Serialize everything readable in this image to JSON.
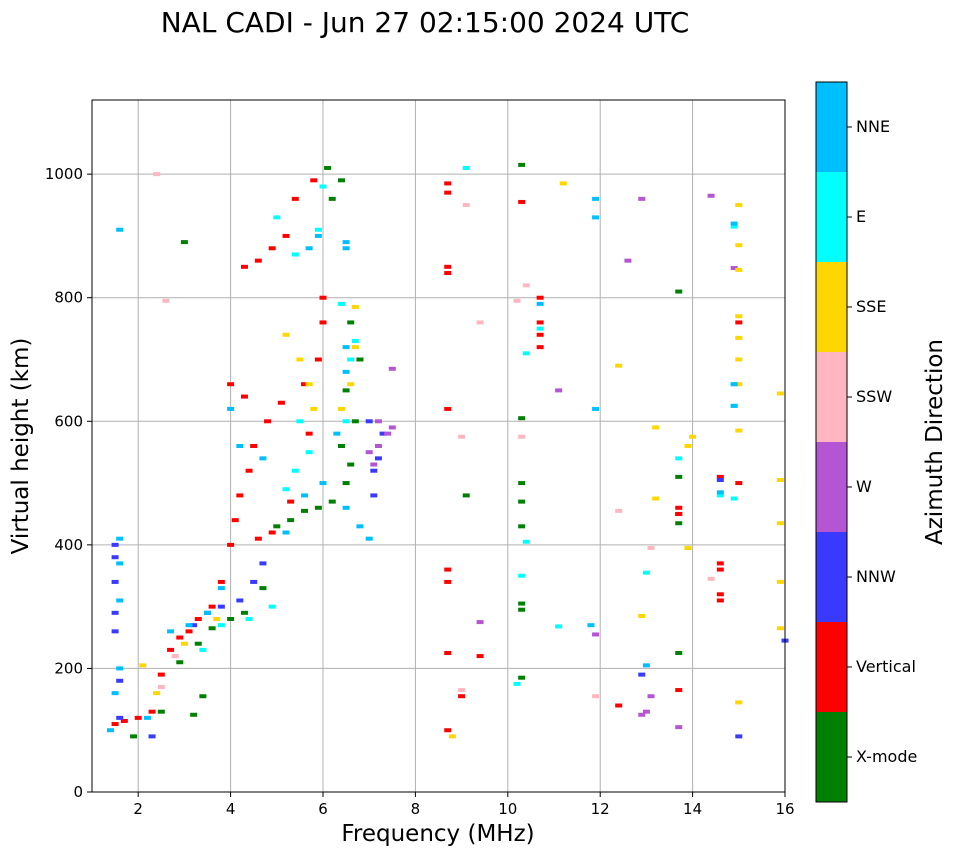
{
  "chart_data": {
    "type": "scatter",
    "title": "NAL CADI - Jun 27 02:15:00 2024 UTC",
    "xlabel": "Frequency (MHz)",
    "ylabel": "Virtual height (km)",
    "xlim": [
      1,
      16
    ],
    "ylim": [
      0,
      1120
    ],
    "xticks": [
      2,
      4,
      6,
      8,
      10,
      12,
      14,
      16
    ],
    "yticks": [
      0,
      200,
      400,
      600,
      800,
      1000
    ],
    "grid": true,
    "colorbar": {
      "label": "Azimuth Direction",
      "categories": [
        {
          "name": "X-mode",
          "color": "#008000"
        },
        {
          "name": "Vertical",
          "color": "#ff0000"
        },
        {
          "name": "NNW",
          "color": "#3a3aff"
        },
        {
          "name": "W",
          "color": "#b455d4"
        },
        {
          "name": "SSW",
          "color": "#ffb6c1"
        },
        {
          "name": "SSE",
          "color": "#ffd700"
        },
        {
          "name": "E",
          "color": "#00ffff"
        },
        {
          "name": "NNE",
          "color": "#00bfff"
        }
      ]
    },
    "series": [
      {
        "name": "X-mode",
        "points": [
          [
            2.5,
            130
          ],
          [
            2.9,
            210
          ],
          [
            3.3,
            240
          ],
          [
            3.6,
            265
          ],
          [
            4.0,
            280
          ],
          [
            4.3,
            290
          ],
          [
            4.7,
            330
          ],
          [
            5.0,
            430
          ],
          [
            5.3,
            440
          ],
          [
            5.6,
            455
          ],
          [
            5.9,
            460
          ],
          [
            6.2,
            470
          ],
          [
            6.5,
            500
          ],
          [
            6.6,
            530
          ],
          [
            6.4,
            560
          ],
          [
            6.7,
            600
          ],
          [
            6.5,
            650
          ],
          [
            6.8,
            700
          ],
          [
            6.6,
            760
          ],
          [
            6.2,
            960
          ],
          [
            6.4,
            990
          ],
          [
            6.1,
            1010
          ],
          [
            10.3,
            1015
          ],
          [
            10.3,
            605
          ],
          [
            10.3,
            500
          ],
          [
            10.3,
            470
          ],
          [
            10.3,
            430
          ],
          [
            10.3,
            305
          ],
          [
            10.3,
            295
          ],
          [
            10.3,
            185
          ],
          [
            9.1,
            480
          ],
          [
            13.7,
            225
          ],
          [
            13.7,
            435
          ],
          [
            13.7,
            450
          ],
          [
            13.7,
            510
          ],
          [
            13.9,
            395
          ],
          [
            13.7,
            810
          ],
          [
            3.2,
            125
          ],
          [
            3.4,
            155
          ],
          [
            1.9,
            90
          ],
          [
            3.0,
            890
          ]
        ]
      },
      {
        "name": "Vertical",
        "points": [
          [
            1.5,
            110
          ],
          [
            1.7,
            115
          ],
          [
            2.0,
            120
          ],
          [
            2.3,
            130
          ],
          [
            2.5,
            190
          ],
          [
            2.7,
            230
          ],
          [
            2.9,
            250
          ],
          [
            3.1,
            260
          ],
          [
            3.3,
            280
          ],
          [
            3.6,
            300
          ],
          [
            3.8,
            340
          ],
          [
            4.0,
            400
          ],
          [
            4.1,
            440
          ],
          [
            4.2,
            480
          ],
          [
            4.4,
            520
          ],
          [
            4.5,
            560
          ],
          [
            4.8,
            600
          ],
          [
            5.1,
            630
          ],
          [
            5.6,
            660
          ],
          [
            5.9,
            700
          ],
          [
            6.0,
            760
          ],
          [
            6.0,
            800
          ],
          [
            4.3,
            850
          ],
          [
            4.6,
            860
          ],
          [
            4.9,
            880
          ],
          [
            5.2,
            900
          ],
          [
            5.4,
            960
          ],
          [
            5.8,
            990
          ],
          [
            4.9,
            420
          ],
          [
            5.3,
            470
          ],
          [
            4.6,
            410
          ],
          [
            4.0,
            660
          ],
          [
            4.3,
            640
          ],
          [
            8.7,
            985
          ],
          [
            8.7,
            970
          ],
          [
            8.7,
            850
          ],
          [
            8.7,
            840
          ],
          [
            8.7,
            620
          ],
          [
            8.7,
            360
          ],
          [
            8.7,
            340
          ],
          [
            8.7,
            225
          ],
          [
            8.7,
            100
          ],
          [
            9.4,
            220
          ],
          [
            10.3,
            955
          ],
          [
            10.7,
            800
          ],
          [
            10.7,
            760
          ],
          [
            10.7,
            740
          ],
          [
            10.7,
            720
          ],
          [
            12.4,
            140
          ],
          [
            13.7,
            165
          ],
          [
            13.7,
            460
          ],
          [
            13.7,
            450
          ],
          [
            14.6,
            510
          ],
          [
            14.6,
            370
          ],
          [
            14.6,
            360
          ],
          [
            14.6,
            320
          ],
          [
            14.6,
            310
          ],
          [
            15.0,
            500
          ],
          [
            15.0,
            760
          ],
          [
            9.0,
            155
          ],
          [
            5.7,
            580
          ]
        ]
      },
      {
        "name": "NNW",
        "points": [
          [
            1.5,
            400
          ],
          [
            1.5,
            380
          ],
          [
            1.5,
            340
          ],
          [
            1.5,
            290
          ],
          [
            1.5,
            260
          ],
          [
            1.6,
            180
          ],
          [
            1.6,
            120
          ],
          [
            2.3,
            90
          ],
          [
            3.2,
            270
          ],
          [
            3.5,
            290
          ],
          [
            3.8,
            300
          ],
          [
            4.2,
            310
          ],
          [
            4.5,
            340
          ],
          [
            4.7,
            370
          ],
          [
            7.1,
            480
          ],
          [
            7.1,
            520
          ],
          [
            7.2,
            540
          ],
          [
            7.0,
            600
          ],
          [
            12.9,
            190
          ],
          [
            14.6,
            505
          ],
          [
            15.0,
            90
          ],
          [
            16.0,
            245
          ],
          [
            7.3,
            580
          ]
        ]
      },
      {
        "name": "W",
        "points": [
          [
            7.0,
            550
          ],
          [
            7.2,
            560
          ],
          [
            7.4,
            580
          ],
          [
            7.5,
            590
          ],
          [
            7.1,
            530
          ],
          [
            7.2,
            600
          ],
          [
            7.5,
            685
          ],
          [
            9.4,
            275
          ],
          [
            11.1,
            650
          ],
          [
            11.9,
            255
          ],
          [
            12.6,
            860
          ],
          [
            12.9,
            960
          ],
          [
            13.0,
            130
          ],
          [
            13.1,
            155
          ],
          [
            13.7,
            105
          ],
          [
            14.4,
            965
          ],
          [
            14.9,
            848
          ],
          [
            12.9,
            125
          ]
        ]
      },
      {
        "name": "SSW",
        "points": [
          [
            2.6,
            795
          ],
          [
            2.4,
            1000
          ],
          [
            2.5,
            170
          ],
          [
            2.8,
            220
          ],
          [
            9.0,
            575
          ],
          [
            9.1,
            950
          ],
          [
            9.4,
            760
          ],
          [
            10.2,
            795
          ],
          [
            10.4,
            820
          ],
          [
            10.3,
            575
          ],
          [
            11.9,
            155
          ],
          [
            12.4,
            455
          ],
          [
            13.1,
            395
          ],
          [
            14.4,
            345
          ],
          [
            9.0,
            165
          ]
        ]
      },
      {
        "name": "SSE",
        "points": [
          [
            2.1,
            205
          ],
          [
            2.4,
            160
          ],
          [
            3.0,
            240
          ],
          [
            3.7,
            280
          ],
          [
            5.2,
            740
          ],
          [
            5.5,
            700
          ],
          [
            5.7,
            660
          ],
          [
            5.8,
            620
          ],
          [
            6.4,
            620
          ],
          [
            6.6,
            660
          ],
          [
            6.7,
            720
          ],
          [
            8.8,
            90
          ],
          [
            11.2,
            985
          ],
          [
            12.4,
            690
          ],
          [
            12.9,
            285
          ],
          [
            13.2,
            475
          ],
          [
            13.2,
            590
          ],
          [
            13.9,
            395
          ],
          [
            13.9,
            560
          ],
          [
            14.0,
            575
          ],
          [
            15.0,
            950
          ],
          [
            15.0,
            885
          ],
          [
            15.0,
            845
          ],
          [
            15.0,
            770
          ],
          [
            15.0,
            735
          ],
          [
            15.0,
            700
          ],
          [
            15.0,
            660
          ],
          [
            15.0,
            585
          ],
          [
            15.0,
            145
          ],
          [
            15.9,
            645
          ],
          [
            15.9,
            505
          ],
          [
            15.9,
            435
          ],
          [
            15.9,
            340
          ],
          [
            15.9,
            265
          ],
          [
            6.7,
            785
          ]
        ]
      },
      {
        "name": "E",
        "points": [
          [
            3.4,
            230
          ],
          [
            3.8,
            270
          ],
          [
            4.4,
            280
          ],
          [
            4.9,
            300
          ],
          [
            5.2,
            490
          ],
          [
            5.4,
            520
          ],
          [
            5.7,
            550
          ],
          [
            5.5,
            600
          ],
          [
            6.5,
            600
          ],
          [
            6.6,
            700
          ],
          [
            6.7,
            730
          ],
          [
            6.4,
            790
          ],
          [
            5.0,
            930
          ],
          [
            5.4,
            870
          ],
          [
            5.9,
            910
          ],
          [
            6.0,
            980
          ],
          [
            9.1,
            1010
          ],
          [
            10.2,
            175
          ],
          [
            10.3,
            350
          ],
          [
            10.4,
            405
          ],
          [
            10.4,
            710
          ],
          [
            11.1,
            268
          ],
          [
            13.0,
            355
          ],
          [
            13.7,
            540
          ],
          [
            14.6,
            480
          ],
          [
            14.9,
            660
          ],
          [
            14.9,
            625
          ],
          [
            14.9,
            915
          ],
          [
            14.9,
            475
          ],
          [
            10.7,
            750
          ]
        ]
      },
      {
        "name": "NNE",
        "points": [
          [
            1.6,
            410
          ],
          [
            1.6,
            370
          ],
          [
            1.6,
            310
          ],
          [
            1.6,
            200
          ],
          [
            1.5,
            160
          ],
          [
            1.4,
            100
          ],
          [
            2.2,
            120
          ],
          [
            2.7,
            260
          ],
          [
            3.1,
            270
          ],
          [
            3.5,
            290
          ],
          [
            3.8,
            330
          ],
          [
            4.0,
            620
          ],
          [
            4.2,
            560
          ],
          [
            4.7,
            540
          ],
          [
            5.2,
            420
          ],
          [
            5.6,
            480
          ],
          [
            6.0,
            500
          ],
          [
            6.5,
            460
          ],
          [
            6.3,
            580
          ],
          [
            6.5,
            680
          ],
          [
            6.5,
            720
          ],
          [
            6.5,
            880
          ],
          [
            6.5,
            890
          ],
          [
            5.7,
            880
          ],
          [
            5.9,
            900
          ],
          [
            1.6,
            910
          ],
          [
            10.7,
            790
          ],
          [
            11.9,
            960
          ],
          [
            11.9,
            930
          ],
          [
            11.9,
            620
          ],
          [
            11.8,
            270
          ],
          [
            13.0,
            205
          ],
          [
            14.6,
            485
          ],
          [
            14.9,
            660
          ],
          [
            14.9,
            920
          ],
          [
            14.9,
            625
          ],
          [
            6.8,
            430
          ],
          [
            7.0,
            410
          ]
        ]
      }
    ]
  }
}
